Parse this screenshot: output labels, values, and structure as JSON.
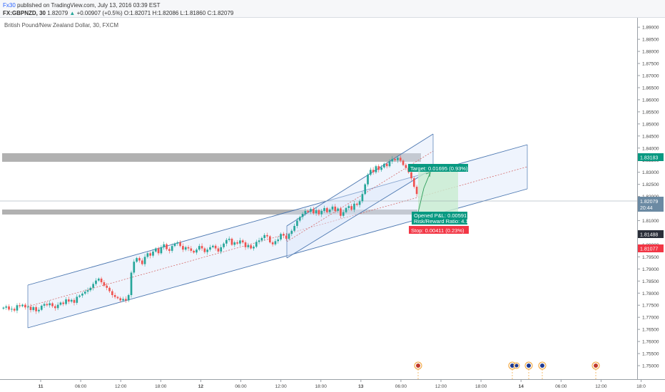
{
  "header": {
    "author": "Fx30",
    "published": "published on TradingView.com, July 13, 2016 03:39 EST",
    "symbol": "FX:GBPNZD, 30",
    "last": "1.82079",
    "change": "+0.00907 (+0.5%)",
    "open": "O:1.82071",
    "high": "H:1.82086",
    "low": "L:1.81860",
    "close": "C:1.82079"
  },
  "chart_title": "British Pound/New Zealand Dollar, 30, FXCM",
  "price_axis": {
    "ticks": [
      "1.89000",
      "1.88500",
      "1.88000",
      "1.87500",
      "1.87000",
      "1.86500",
      "1.86000",
      "1.85500",
      "1.85000",
      "1.84500",
      "1.84000",
      "1.83500",
      "1.83000",
      "1.82500",
      "1.82000",
      "1.81500",
      "1.81000",
      "1.80500",
      "1.80000",
      "1.79500",
      "1.79000",
      "1.78500",
      "1.78000",
      "1.77500",
      "1.77000",
      "1.76500",
      "1.76000",
      "1.75500",
      "1.75000"
    ],
    "badges": {
      "target": "1.83183",
      "current": "1.82079",
      "countdown": "20:44",
      "entry": "1.81488",
      "stop": "1.81077"
    }
  },
  "time_axis": {
    "ticks": [
      "11",
      "06:00",
      "12:00",
      "18:00",
      "12",
      "06:00",
      "12:00",
      "18:00",
      "13",
      "06:00",
      "12:00",
      "18:00",
      "14",
      "06:00",
      "12:00",
      "18:0"
    ]
  },
  "position": {
    "target": "Target: 0.01695 (0.93%)",
    "opened_pl": "Opened P&L: 0.00591",
    "risk_reward": "Risk/Reward Ratio: 4.12",
    "stop": "Stop: 0.00411 (0.23%)"
  },
  "colors": {
    "up": "#26a69a",
    "down": "#ef5350",
    "target_badge": "#089981",
    "stop_badge": "#f23645",
    "channel_line": "#4a76b0",
    "zone": "#9e9e9e"
  },
  "chart_data": {
    "type": "candlestick",
    "price_range": [
      1.745,
      1.893
    ],
    "series": [
      {
        "values": [
          1.774,
          1.7745,
          1.7732,
          1.7735,
          1.7728,
          1.775,
          1.7746,
          1.7752,
          1.7741,
          1.7744,
          1.773,
          1.7742,
          1.7725,
          1.7731,
          1.7748,
          1.7755,
          1.775,
          1.7758,
          1.7746,
          1.7738,
          1.7752,
          1.7761,
          1.7755,
          1.7774,
          1.7765,
          1.7772,
          1.776,
          1.7785,
          1.779,
          1.7798,
          1.7806,
          1.7812,
          1.7822,
          1.7838,
          1.7852,
          1.786,
          1.7845,
          1.7831,
          1.7822,
          1.7808,
          1.7792,
          1.7784,
          1.7779,
          1.777,
          1.7776,
          1.777,
          1.7792,
          1.7885,
          1.793,
          1.7945,
          1.7935,
          1.792,
          1.795,
          1.7965,
          1.7955,
          1.7972,
          1.7985,
          1.7965,
          1.799,
          1.8002,
          1.7982,
          1.7975,
          1.7995,
          1.8005,
          1.801,
          1.7995,
          1.798,
          1.799,
          1.7985,
          1.7975,
          1.7968,
          1.798,
          1.7995,
          1.7985,
          1.797,
          1.798,
          1.799,
          1.7996,
          1.7985,
          1.7972,
          1.799,
          1.8005,
          1.802,
          1.8025,
          1.8,
          1.801,
          1.8005,
          1.8018,
          1.801,
          1.799,
          1.7998,
          1.7985,
          1.7992,
          1.8012,
          1.8018,
          1.8028,
          1.804,
          1.8035,
          1.801,
          1.8002,
          1.8015,
          1.8022,
          1.8045,
          1.8038,
          1.8025,
          1.8045,
          1.8058,
          1.8078,
          1.81,
          1.8115,
          1.8128,
          1.814,
          1.8136,
          1.8148,
          1.813,
          1.8143,
          1.8126,
          1.814,
          1.8152,
          1.8135,
          1.8146,
          1.8158,
          1.814,
          1.815,
          1.812,
          1.8135,
          1.8152,
          1.816,
          1.8145,
          1.817,
          1.8165,
          1.818,
          1.821,
          1.825,
          1.829,
          1.831,
          1.83,
          1.8325,
          1.831,
          1.832,
          1.8335,
          1.8325,
          1.8345,
          1.8355,
          1.835,
          1.836,
          1.8348,
          1.833,
          1.8318,
          1.83,
          1.8275,
          1.824,
          1.821
        ]
      }
    ],
    "zones": [
      {
        "low": 1.8325,
        "high": 1.8355
      },
      {
        "low": 1.814,
        "high": 1.8155
      }
    ],
    "lines": {
      "current": 1.82079,
      "entry": 1.81488
    }
  }
}
